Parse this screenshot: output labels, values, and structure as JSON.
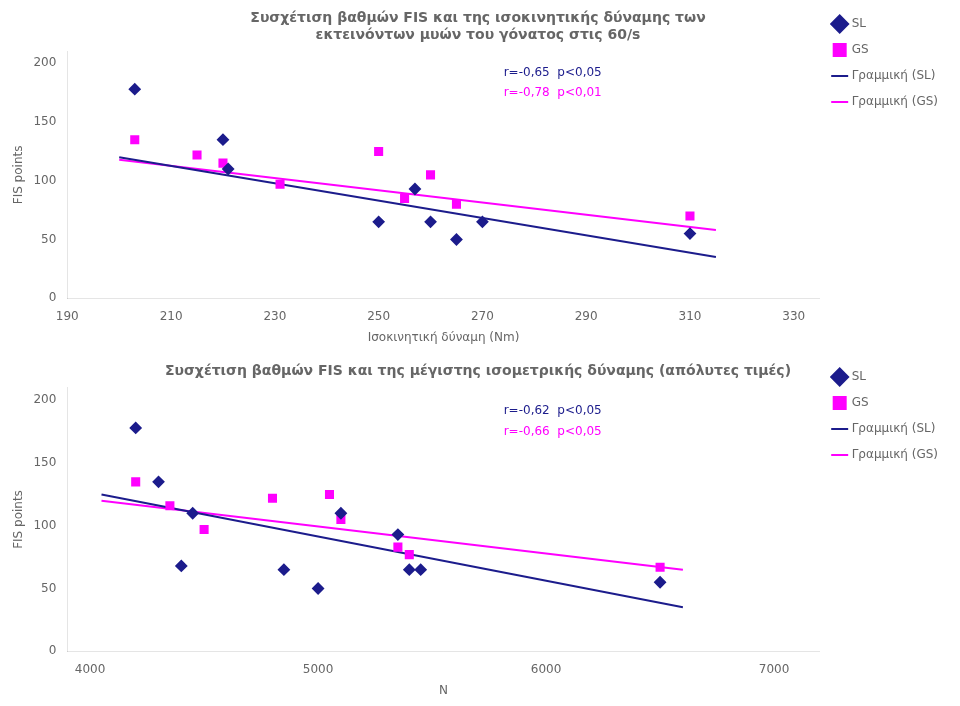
{
  "chart_data": [
    {
      "type": "scatter",
      "title": [
        "Συσχέτιση βαθμών FIS και της ισοκινητικής δύναμης των",
        "εκτεινόντων μυών του γόνατος στις 60/s"
      ],
      "x_label": "Ισοκινητική δύναμη (Nm)",
      "y_label": "FIS points",
      "series": [
        {
          "name": "SL",
          "type": "scatter",
          "marker": "diamond",
          "color": "#1c1c8c",
          "x": [
            203,
            220,
            221,
            250,
            257,
            260,
            265,
            270,
            310
          ],
          "values": [
            178,
            135,
            110,
            65,
            93,
            65,
            50,
            65,
            55
          ]
        },
        {
          "name": "GS",
          "type": "scatter",
          "marker": "square",
          "color": "#ff00ff",
          "x": [
            203,
            215,
            220,
            231,
            250,
            255,
            260,
            265,
            310
          ],
          "values": [
            135,
            122,
            115,
            97,
            125,
            85,
            105,
            80,
            70
          ]
        },
        {
          "name": "Γραμμική (SL)",
          "type": "line",
          "line_style": "solid",
          "color": "#1c1c8c",
          "x": [
            200,
            315
          ],
          "values": [
            120,
            35
          ]
        },
        {
          "name": "Γραμμική (GS)",
          "type": "line",
          "line_style": "solid",
          "color": "#ff00ff",
          "x": [
            200,
            315
          ],
          "values": [
            118,
            58
          ]
        }
      ],
      "annotations": [
        {
          "text": "r=-0,65  p<0,05",
          "color": "#1c1c8c"
        },
        {
          "text": "r=-0,78  p<0,01",
          "color": "#ff00ff"
        }
      ],
      "xlim": [
        190,
        335
      ],
      "ylim": [
        0,
        210
      ],
      "xticks": [
        190,
        210,
        230,
        250,
        270,
        290,
        310,
        330
      ],
      "yticks": [
        0,
        50,
        100,
        150,
        200
      ],
      "grid": false,
      "legend": "right"
    },
    {
      "type": "scatter",
      "title": "Συσχέτιση βαθμών FIS και της μέγιστης ισομετρικής δύναμης (απόλυτες τιμές)",
      "x_label": "Ν",
      "y_label": "FIS points",
      "series": [
        {
          "name": "SL",
          "type": "scatter",
          "marker": "diamond",
          "color": "#1c1c8c",
          "x": [
            4200,
            4300,
            4400,
            4450,
            4850,
            5000,
            5100,
            5350,
            5400,
            5450,
            6500
          ],
          "values": [
            178,
            135,
            68,
            110,
            65,
            50,
            110,
            93,
            65,
            65,
            55
          ]
        },
        {
          "name": "GS",
          "type": "scatter",
          "marker": "square",
          "color": "#ff00ff",
          "x": [
            4200,
            4350,
            4500,
            4800,
            5050,
            5100,
            5350,
            5400,
            6500
          ],
          "values": [
            135,
            116,
            97,
            122,
            125,
            105,
            83,
            77,
            67
          ]
        },
        {
          "name": "Γραμμική (SL)",
          "type": "line",
          "line_style": "solid",
          "color": "#1c1c8c",
          "x": [
            4050,
            6600
          ],
          "values": [
            125,
            35
          ]
        },
        {
          "name": "Γραμμική (GS)",
          "type": "line",
          "line_style": "solid",
          "color": "#ff00ff",
          "x": [
            4050,
            6600
          ],
          "values": [
            120,
            65
          ]
        }
      ],
      "annotations": [
        {
          "text": "r=-0,62  p<0,05",
          "color": "#1c1c8c"
        },
        {
          "text": "r=-0,66  p<0,05",
          "color": "#ff00ff"
        }
      ],
      "xlim": [
        3900,
        7200
      ],
      "ylim": [
        0,
        210
      ],
      "xticks": [
        4000,
        5000,
        6000,
        7000
      ],
      "yticks": [
        0,
        50,
        100,
        150,
        200
      ],
      "grid": false,
      "legend": "right"
    }
  ]
}
